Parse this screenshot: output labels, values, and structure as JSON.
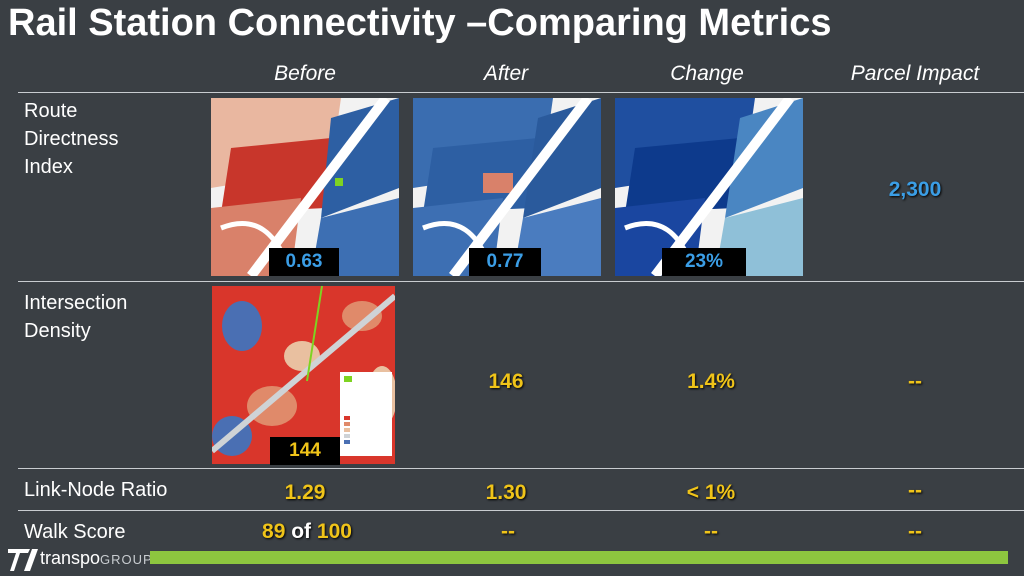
{
  "title": "Rail Station Connectivity –Comparing Metrics",
  "columns": [
    "Before",
    "After",
    "Change",
    "Parcel Impact"
  ],
  "rows": {
    "route_directness": {
      "label": "Route Directness Index",
      "before": "0.63",
      "after": "0.77",
      "change": "23%",
      "parcel_impact": "2,300"
    },
    "intersection_density": {
      "label": "Intersection Density",
      "before": "144",
      "after": "146",
      "change": "1.4%",
      "parcel_impact": "--"
    },
    "link_node": {
      "label": "Link-Node Ratio",
      "before": "1.29",
      "after": "1.30",
      "change": "< 1%",
      "parcel_impact": "--"
    },
    "walk_score": {
      "label": "Walk Score",
      "before_score": "89",
      "before_of": "of",
      "before_max": "100",
      "after": "--",
      "change": "--",
      "parcel_impact": "--"
    }
  },
  "colors": {
    "background": "#3a3f44",
    "yellow": "#f0c419",
    "blue": "#3b9ee6",
    "green_bar": "#8dc63f"
  },
  "logo": {
    "name": "transpo",
    "suffix": "GROUP"
  }
}
